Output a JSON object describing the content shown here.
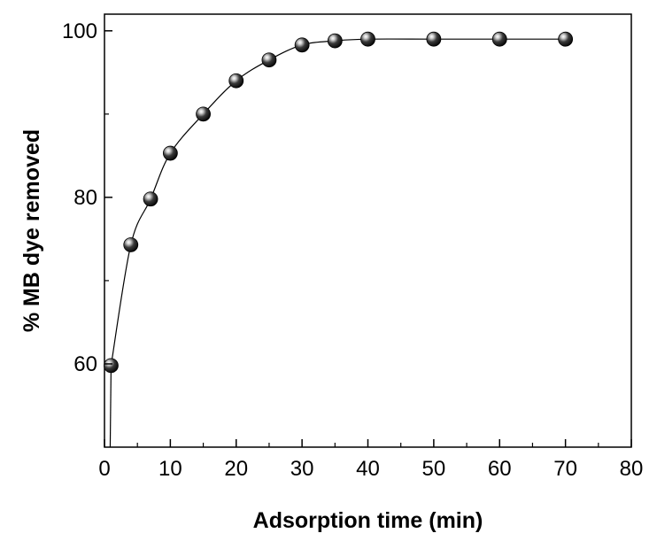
{
  "chart_data": {
    "type": "scatter",
    "title": "",
    "xlabel": "Adsorption time (min)",
    "ylabel": "% MB dye removed",
    "xlim": [
      0,
      80
    ],
    "ylim": [
      50,
      102
    ],
    "x_ticks": [
      0,
      10,
      20,
      30,
      40,
      50,
      60,
      70,
      80
    ],
    "y_ticks": [
      60,
      80,
      100
    ],
    "grid": false,
    "legend": "none",
    "series": [
      {
        "marker": "sphere",
        "line": "connected",
        "points": [
          {
            "x": 1,
            "y": 59.8
          },
          {
            "x": 4,
            "y": 74.3
          },
          {
            "x": 7,
            "y": 79.8
          },
          {
            "x": 10,
            "y": 85.3
          },
          {
            "x": 15,
            "y": 90.0
          },
          {
            "x": 20,
            "y": 94.0
          },
          {
            "x": 25,
            "y": 96.5
          },
          {
            "x": 30,
            "y": 98.3
          },
          {
            "x": 35,
            "y": 98.8
          },
          {
            "x": 40,
            "y": 99.0
          },
          {
            "x": 50,
            "y": 99.0
          },
          {
            "x": 60,
            "y": 99.0
          },
          {
            "x": 70,
            "y": 99.0
          }
        ]
      }
    ],
    "colors": {
      "marker": "#000000",
      "line": "#000000",
      "axis": "#000000"
    }
  }
}
